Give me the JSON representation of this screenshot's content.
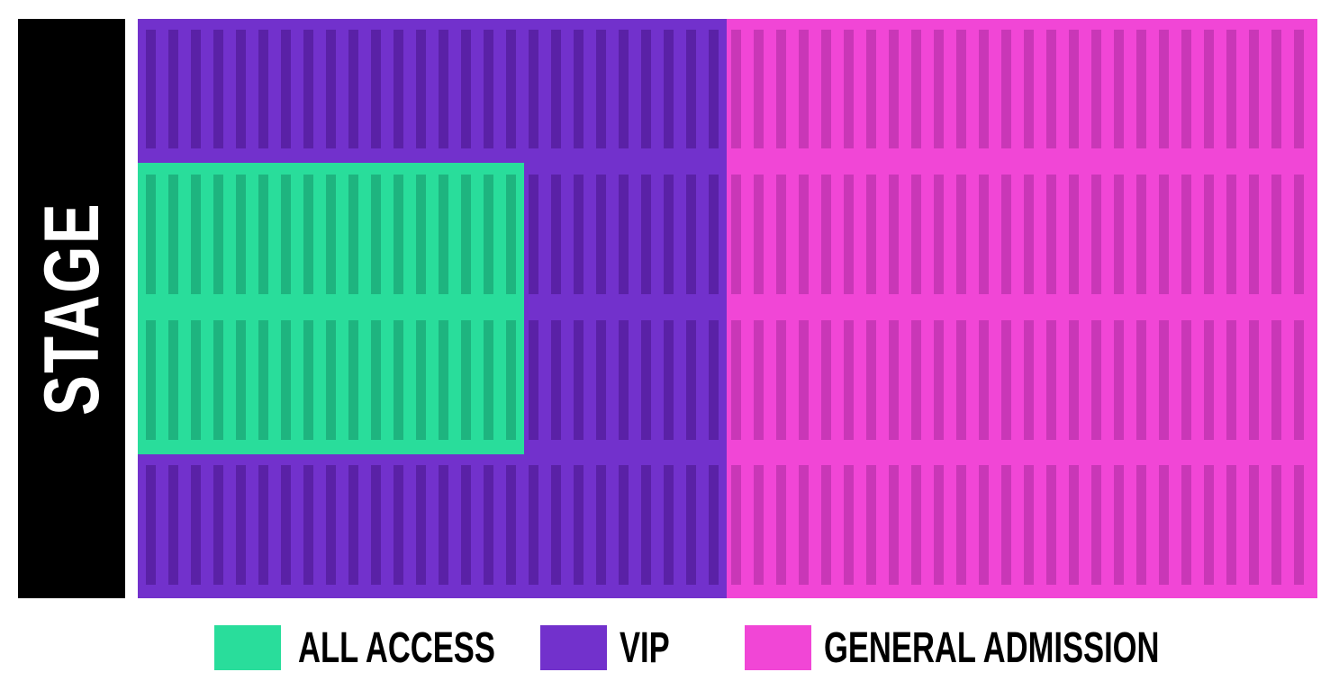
{
  "stage": {
    "label": "STAGE"
  },
  "zones": [
    {
      "id": "vip",
      "name": "VIP",
      "color": "#7231CC",
      "stripe": "#5A21A6"
    },
    {
      "id": "general-admission",
      "name": "GENERAL ADMISSION",
      "color": "#F146D6",
      "stripe": "#C937B7"
    },
    {
      "id": "all-access",
      "name": "ALL ACCESS",
      "color": "#29DD9B",
      "stripe": "#1EB47F"
    }
  ],
  "legend": [
    {
      "label": "ALL ACCESS",
      "color": "#29DD9B"
    },
    {
      "label": "VIP",
      "color": "#7231CC"
    },
    {
      "label": "GENERAL ADMISSION",
      "color": "#F146D6"
    }
  ]
}
